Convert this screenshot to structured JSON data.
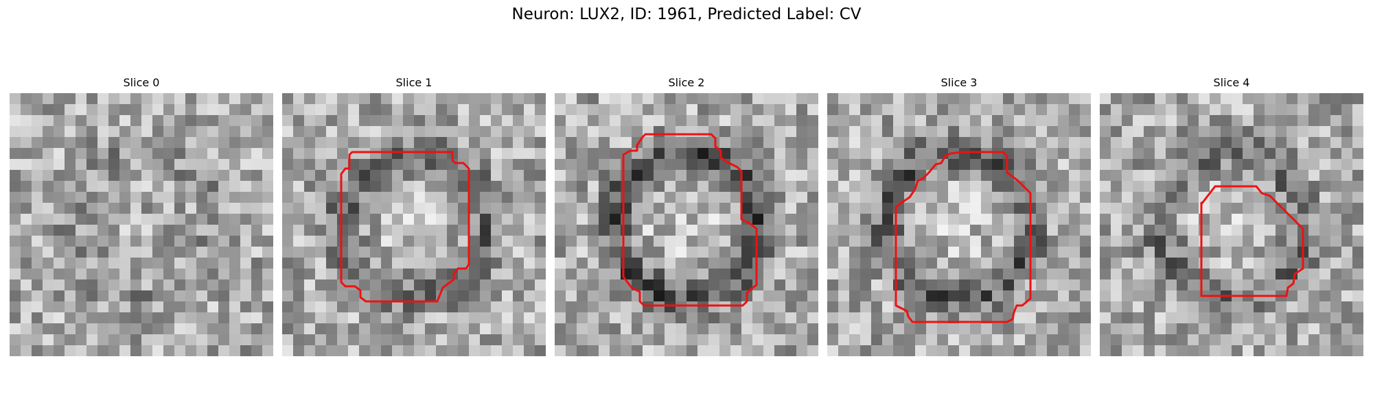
{
  "figure": {
    "title": "Neuron: LUX2, ID: 1961, Predicted Label: CV"
  },
  "panels": [
    {
      "title": "Slice 0",
      "has_outline": false,
      "seed": 11,
      "ring": 0.2
    },
    {
      "title": "Slice 1",
      "has_outline": true,
      "seed": 23,
      "ring": 0.6
    },
    {
      "title": "Slice 2",
      "has_outline": true,
      "seed": 37,
      "ring": 0.85
    },
    {
      "title": "Slice 3",
      "has_outline": true,
      "seed": 53,
      "ring": 0.7
    },
    {
      "title": "Slice 4",
      "has_outline": true,
      "seed": 71,
      "ring": 0.55
    }
  ],
  "colors": {
    "outline": "#ee1111",
    "background": "#ffffff"
  }
}
